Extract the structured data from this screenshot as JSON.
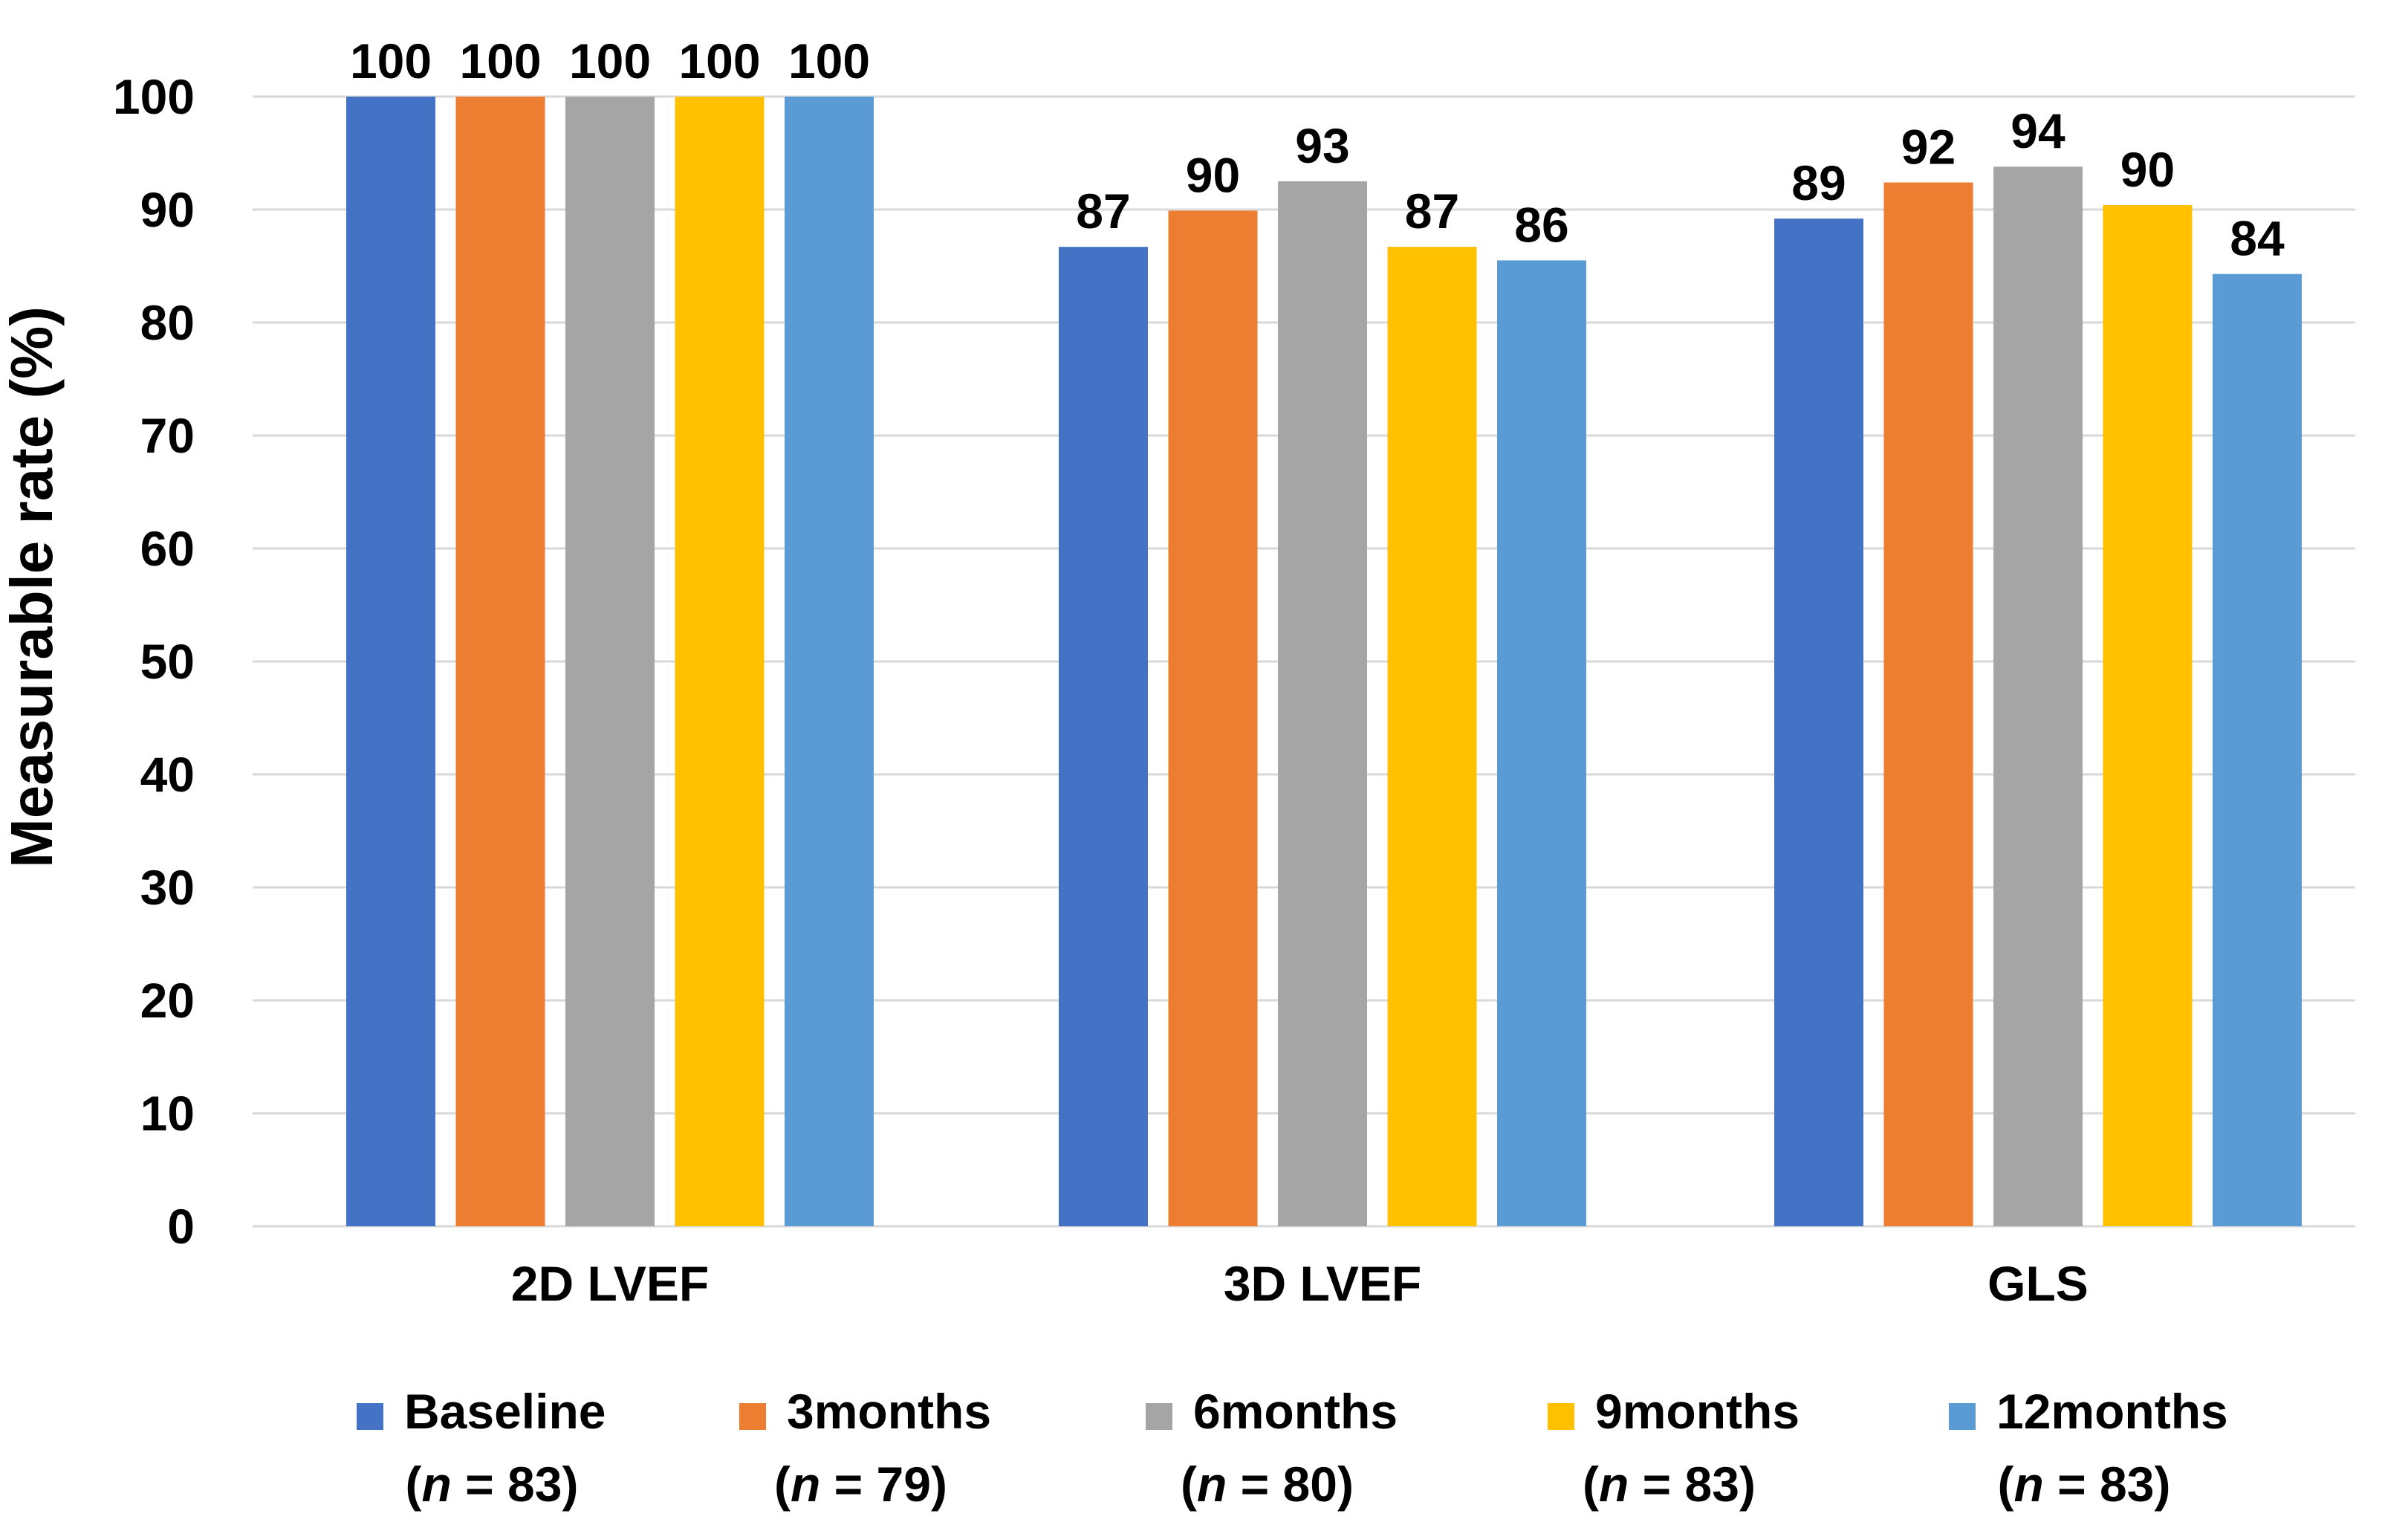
{
  "chart_data": {
    "type": "bar",
    "title": "",
    "xlabel": "",
    "ylabel": "Measurable rate (%)",
    "ylim": [
      0,
      100
    ],
    "yticks": [
      0,
      10,
      20,
      30,
      40,
      50,
      60,
      70,
      80,
      90,
      100
    ],
    "grid": true,
    "categories": [
      "2D LVEF",
      "3D LVEF",
      "GLS"
    ],
    "series": [
      {
        "name": "Baseline",
        "n_label": "(n = 83)",
        "n_prefix": "(",
        "n_var": "n",
        "n_suffix": " = 83)",
        "color": "#4472c4",
        "values": [
          100,
          86.7,
          89.2
        ],
        "labels": [
          "100",
          "87",
          "89"
        ]
      },
      {
        "name": "3months",
        "n_label": "(n = 79)",
        "n_prefix": "(",
        "n_var": "n",
        "n_suffix": " = 79)",
        "color": "#ed7d31",
        "values": [
          100,
          89.9,
          92.4
        ],
        "labels": [
          "100",
          "90",
          "92"
        ]
      },
      {
        "name": "6months",
        "n_label": "(n = 80)",
        "n_prefix": "(",
        "n_var": "n",
        "n_suffix": " = 80)",
        "color": "#a5a5a5",
        "values": [
          100,
          92.5,
          93.8
        ],
        "labels": [
          "100",
          "93",
          "94"
        ]
      },
      {
        "name": "9months",
        "n_label": "(n = 83)",
        "n_prefix": "(",
        "n_var": "n",
        "n_suffix": " = 83)",
        "color": "#ffc000",
        "values": [
          100,
          86.7,
          90.4
        ],
        "labels": [
          "100",
          "87",
          "90"
        ]
      },
      {
        "name": "12months",
        "n_label": "(n = 83)",
        "n_prefix": "(",
        "n_var": "n",
        "n_suffix": " = 83)",
        "color": "#5b9bd5",
        "values": [
          100,
          85.5,
          84.3
        ],
        "labels": [
          "100",
          "86",
          "84"
        ]
      }
    ],
    "legend_position": "bottom"
  }
}
